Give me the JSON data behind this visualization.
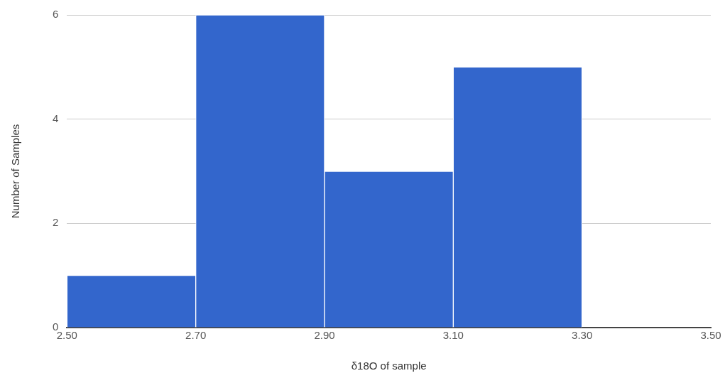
{
  "chart_data": {
    "type": "histogram",
    "xlabel": "δ18O of sample",
    "ylabel": "Number of Samples",
    "bins": [
      2.5,
      2.7,
      2.9,
      3.1,
      3.3,
      3.5
    ],
    "values": [
      1,
      6,
      3,
      5,
      0
    ],
    "color": "#3366cc",
    "xlim": [
      2.5,
      3.5
    ],
    "xticks": [
      {
        "value": 2.5,
        "label": "2.50"
      },
      {
        "value": 2.7,
        "label": "2.70"
      },
      {
        "value": 2.9,
        "label": "2.90"
      },
      {
        "value": 3.1,
        "label": "3.10"
      },
      {
        "value": 3.3,
        "label": "3.30"
      },
      {
        "value": 3.5,
        "label": "3.50"
      }
    ],
    "ylim": [
      0,
      6
    ],
    "yticks": [
      0,
      2,
      4,
      6
    ],
    "grid": "y",
    "legend": false
  }
}
